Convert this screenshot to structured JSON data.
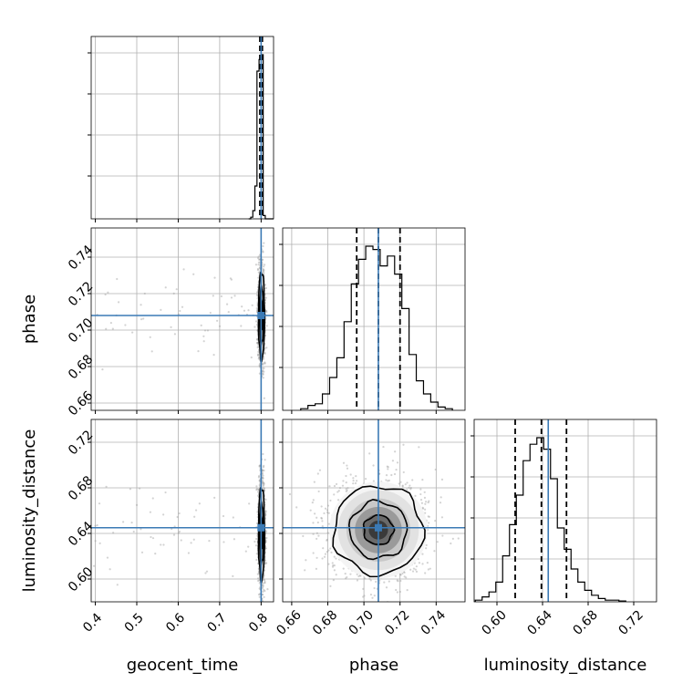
{
  "chart_data": {
    "type": "corner",
    "parameters": [
      "geocent_time",
      "phase",
      "luminosity_distance"
    ],
    "truths": {
      "geocent_time": 0.8,
      "phase": 0.708,
      "luminosity_distance": 0.645
    },
    "grid": true,
    "colors": {
      "truth": "#3b7ab5",
      "hist": "#000000",
      "grid": "#b0b0b0",
      "points": "#9e9e9e"
    },
    "diag": [
      {
        "param": "geocent_time",
        "xlim": [
          0.39,
          0.83
        ],
        "quantiles": [
          0.797,
          0.8,
          0.803
        ],
        "hist": {
          "edges": [
            0.77,
            0.775,
            0.78,
            0.785,
            0.79,
            0.795,
            0.8,
            0.805,
            0.81,
            0.815,
            0.82,
            0.83
          ],
          "counts": [
            0,
            0.01,
            0.05,
            0.2,
            0.9,
            0.97,
            1.0,
            0.02,
            0,
            0,
            0
          ]
        }
      },
      {
        "param": "phase",
        "xlim": [
          0.655,
          0.756
        ],
        "quantiles": [
          0.696,
          0.708,
          0.72
        ],
        "hist": {
          "edges": [
            0.665,
            0.669,
            0.673,
            0.677,
            0.681,
            0.685,
            0.689,
            0.693,
            0.697,
            0.701,
            0.705,
            0.709,
            0.713,
            0.717,
            0.721,
            0.725,
            0.729,
            0.733,
            0.737,
            0.741,
            0.745,
            0.749
          ],
          "counts": [
            0.01,
            0.03,
            0.04,
            0.1,
            0.2,
            0.32,
            0.54,
            0.77,
            0.92,
            1.0,
            0.98,
            0.88,
            0.94,
            0.83,
            0.62,
            0.34,
            0.18,
            0.1,
            0.05,
            0.02,
            0.01
          ]
        }
      },
      {
        "param": "luminosity_distance",
        "xlim": [
          0.58,
          0.74
        ],
        "quantiles": [
          0.616,
          0.639,
          0.661
        ],
        "hist": {
          "edges": [
            0.581,
            0.587,
            0.593,
            0.599,
            0.605,
            0.611,
            0.617,
            0.623,
            0.629,
            0.635,
            0.641,
            0.647,
            0.653,
            0.659,
            0.665,
            0.671,
            0.677,
            0.683,
            0.689,
            0.695,
            0.701,
            0.707,
            0.713
          ],
          "counts": [
            0.01,
            0.03,
            0.06,
            0.12,
            0.28,
            0.47,
            0.65,
            0.86,
            0.96,
            1.0,
            0.93,
            0.75,
            0.45,
            0.32,
            0.2,
            0.12,
            0.07,
            0.04,
            0.02,
            0.01,
            0.01,
            0.005
          ]
        }
      }
    ],
    "offdiag": [
      {
        "x": "geocent_time",
        "y": "phase",
        "xlim": [
          0.39,
          0.83
        ],
        "ylim": [
          0.656,
          0.756
        ],
        "center": [
          0.801,
          0.708
        ],
        "spread": [
          0.0035,
          0.0115
        ]
      },
      {
        "x": "geocent_time",
        "y": "luminosity_distance",
        "xlim": [
          0.39,
          0.83
        ],
        "ylim": [
          0.58,
          0.74
        ],
        "center": [
          0.801,
          0.64
        ],
        "spread": [
          0.0035,
          0.0195
        ]
      },
      {
        "x": "phase",
        "y": "luminosity_distance",
        "xlim": [
          0.655,
          0.756
        ],
        "ylim": [
          0.58,
          0.74
        ],
        "center": [
          0.708,
          0.643
        ],
        "spread": [
          0.0118,
          0.0185
        ]
      }
    ],
    "ticks": {
      "geocent_time": [
        "0.4",
        "0.5",
        "0.6",
        "0.7",
        "0.8"
      ],
      "phase": [
        "0.66",
        "0.68",
        "0.70",
        "0.72",
        "0.74"
      ],
      "luminosity_distance": [
        "0.60",
        "0.64",
        "0.68",
        "0.72"
      ]
    },
    "xlabels": [
      "geocent_time",
      "phase",
      "luminosity_distance"
    ],
    "ylabels": [
      "phase",
      "luminosity_distance"
    ]
  }
}
